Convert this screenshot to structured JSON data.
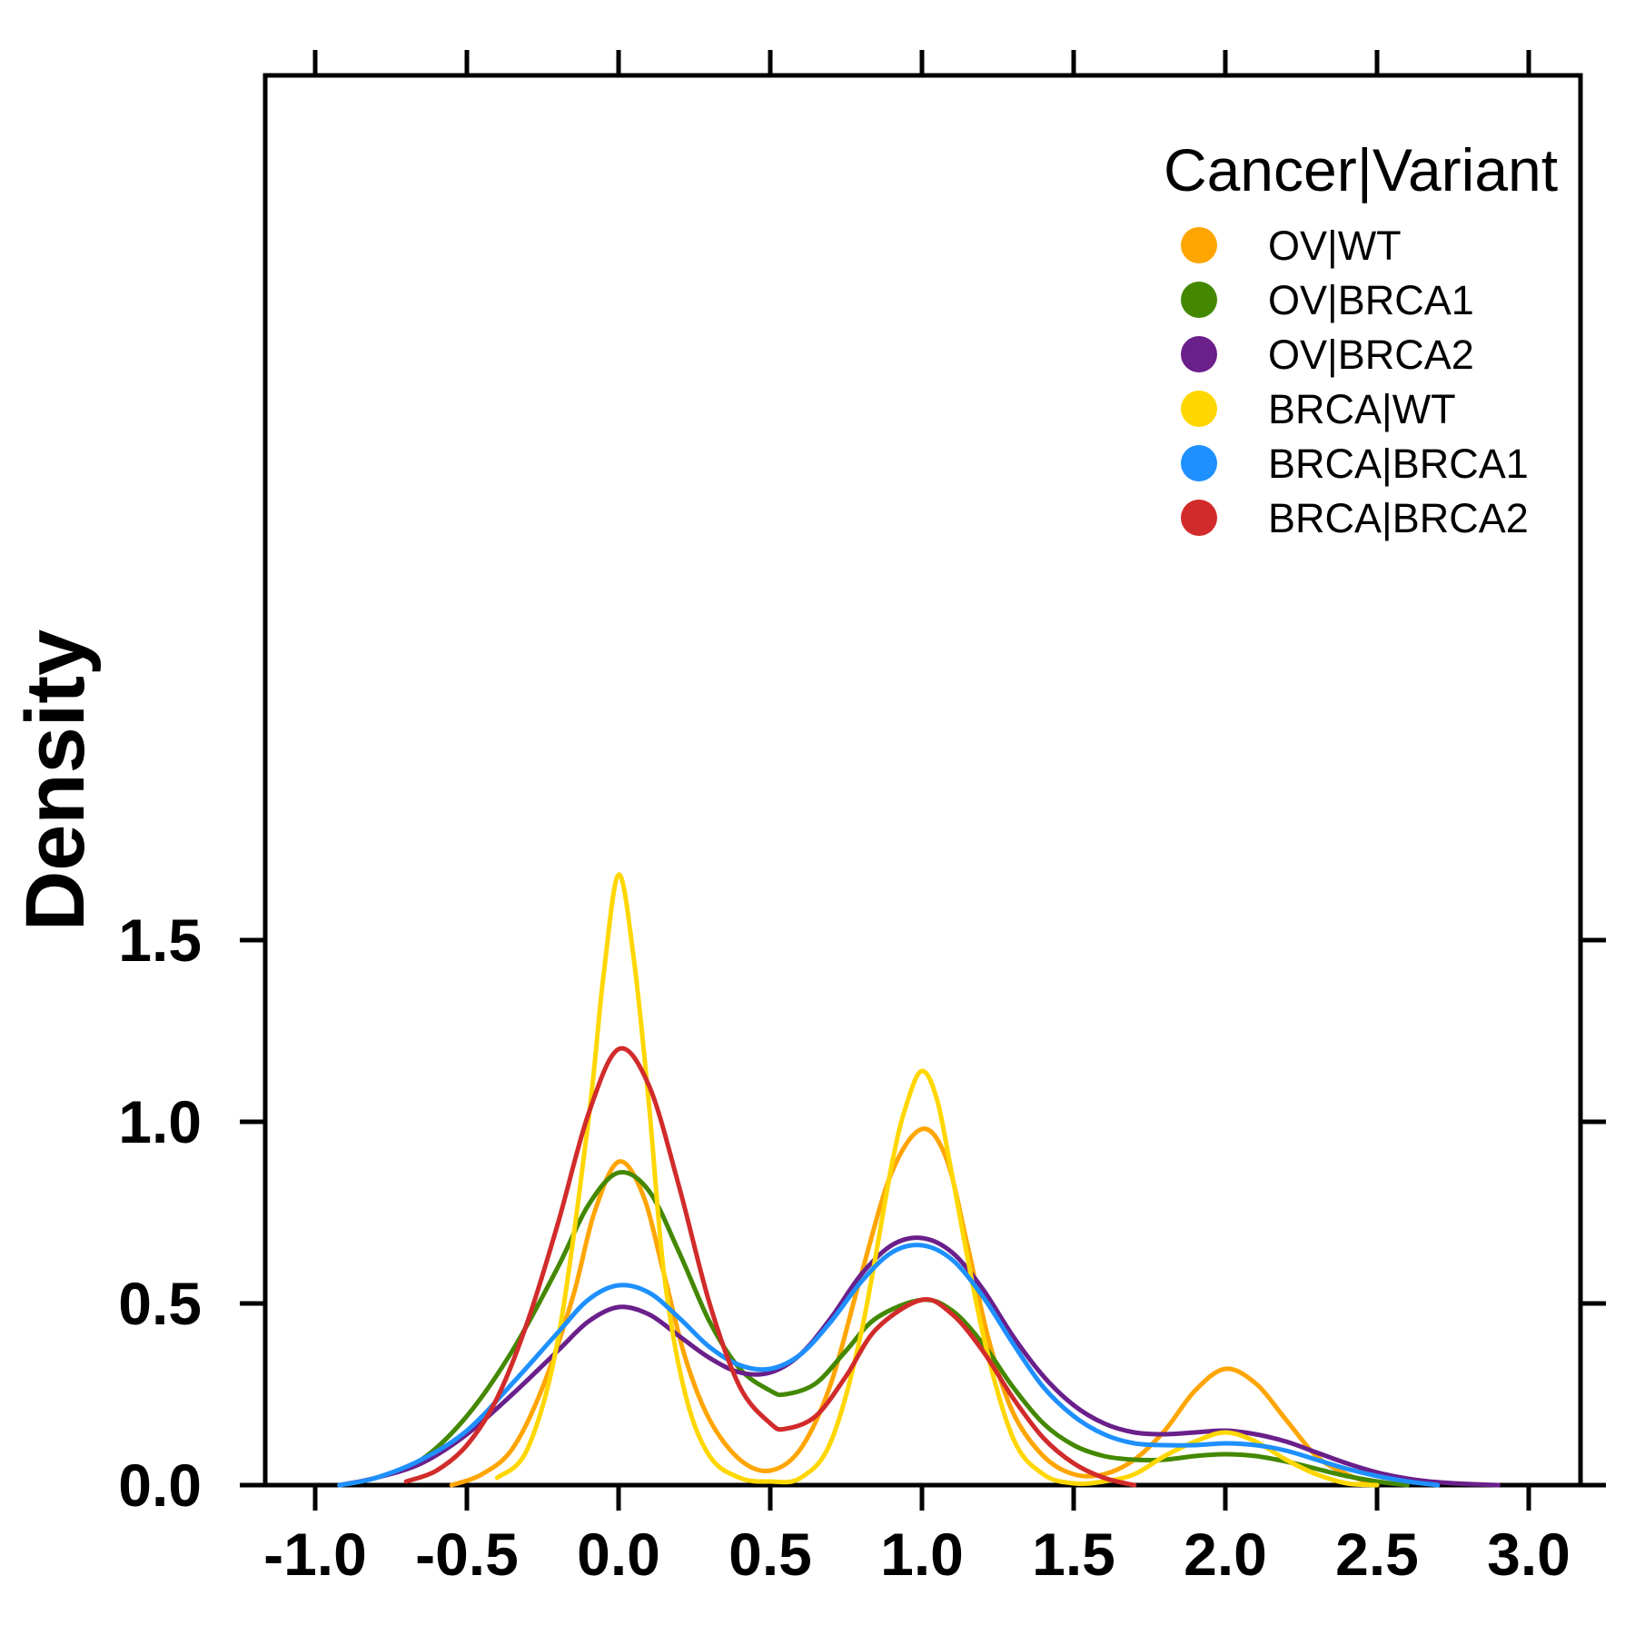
{
  "chart_data": {
    "type": "line",
    "title": "",
    "xlabel": "",
    "ylabel": "Density",
    "xlim": [
      -1.0,
      3.0
    ],
    "ylim": [
      0.0,
      1.8
    ],
    "x_ticks": [
      "-1.0",
      "-0.5",
      "0.0",
      "0.5",
      "1.0",
      "1.5",
      "2.0",
      "2.5",
      "3.0"
    ],
    "y_ticks": [
      "0.0",
      "0.5",
      "1.0",
      "1.5"
    ],
    "grid": false,
    "legend": {
      "title": "Cancer|Variant",
      "placement": "top-right"
    },
    "series": [
      {
        "name": "OV|WT",
        "color": "#FFA500",
        "points": [
          [
            -0.55,
            0.0
          ],
          [
            -0.45,
            0.03
          ],
          [
            -0.35,
            0.1
          ],
          [
            -0.25,
            0.27
          ],
          [
            -0.15,
            0.52
          ],
          [
            -0.08,
            0.75
          ],
          [
            0.0,
            0.89
          ],
          [
            0.08,
            0.8
          ],
          [
            0.15,
            0.58
          ],
          [
            0.22,
            0.35
          ],
          [
            0.3,
            0.18
          ],
          [
            0.4,
            0.07
          ],
          [
            0.5,
            0.04
          ],
          [
            0.6,
            0.1
          ],
          [
            0.7,
            0.28
          ],
          [
            0.8,
            0.58
          ],
          [
            0.9,
            0.86
          ],
          [
            1.0,
            0.98
          ],
          [
            1.08,
            0.9
          ],
          [
            1.15,
            0.66
          ],
          [
            1.22,
            0.4
          ],
          [
            1.3,
            0.2
          ],
          [
            1.4,
            0.08
          ],
          [
            1.5,
            0.03
          ],
          [
            1.6,
            0.03
          ],
          [
            1.7,
            0.07
          ],
          [
            1.8,
            0.15
          ],
          [
            1.9,
            0.26
          ],
          [
            2.0,
            0.32
          ],
          [
            2.1,
            0.28
          ],
          [
            2.2,
            0.18
          ],
          [
            2.3,
            0.08
          ],
          [
            2.4,
            0.03
          ],
          [
            2.5,
            0.0
          ]
        ]
      },
      {
        "name": "OV|BRCA1",
        "color": "#448800",
        "points": [
          [
            -0.92,
            0.0
          ],
          [
            -0.8,
            0.02
          ],
          [
            -0.65,
            0.07
          ],
          [
            -0.5,
            0.19
          ],
          [
            -0.35,
            0.37
          ],
          [
            -0.2,
            0.6
          ],
          [
            -0.1,
            0.77
          ],
          [
            0.0,
            0.86
          ],
          [
            0.1,
            0.81
          ],
          [
            0.2,
            0.64
          ],
          [
            0.3,
            0.45
          ],
          [
            0.4,
            0.32
          ],
          [
            0.5,
            0.26
          ],
          [
            0.55,
            0.25
          ],
          [
            0.65,
            0.28
          ],
          [
            0.75,
            0.37
          ],
          [
            0.85,
            0.46
          ],
          [
            1.0,
            0.51
          ],
          [
            1.1,
            0.48
          ],
          [
            1.2,
            0.39
          ],
          [
            1.3,
            0.27
          ],
          [
            1.4,
            0.17
          ],
          [
            1.5,
            0.11
          ],
          [
            1.6,
            0.08
          ],
          [
            1.7,
            0.07
          ],
          [
            1.8,
            0.07
          ],
          [
            1.9,
            0.08
          ],
          [
            2.0,
            0.085
          ],
          [
            2.1,
            0.08
          ],
          [
            2.2,
            0.065
          ],
          [
            2.3,
            0.045
          ],
          [
            2.4,
            0.025
          ],
          [
            2.5,
            0.01
          ],
          [
            2.6,
            0.0
          ]
        ]
      },
      {
        "name": "OV|BRCA2",
        "color": "#6A1F8A",
        "points": [
          [
            -0.92,
            0.0
          ],
          [
            -0.8,
            0.02
          ],
          [
            -0.65,
            0.06
          ],
          [
            -0.5,
            0.14
          ],
          [
            -0.35,
            0.25
          ],
          [
            -0.2,
            0.37
          ],
          [
            -0.1,
            0.45
          ],
          [
            0.0,
            0.49
          ],
          [
            0.1,
            0.47
          ],
          [
            0.2,
            0.41
          ],
          [
            0.3,
            0.35
          ],
          [
            0.4,
            0.31
          ],
          [
            0.5,
            0.31
          ],
          [
            0.6,
            0.36
          ],
          [
            0.7,
            0.46
          ],
          [
            0.8,
            0.58
          ],
          [
            0.9,
            0.66
          ],
          [
            1.0,
            0.68
          ],
          [
            1.1,
            0.64
          ],
          [
            1.2,
            0.54
          ],
          [
            1.3,
            0.41
          ],
          [
            1.4,
            0.3
          ],
          [
            1.5,
            0.22
          ],
          [
            1.6,
            0.17
          ],
          [
            1.7,
            0.145
          ],
          [
            1.8,
            0.14
          ],
          [
            1.9,
            0.145
          ],
          [
            2.0,
            0.15
          ],
          [
            2.1,
            0.14
          ],
          [
            2.2,
            0.12
          ],
          [
            2.3,
            0.09
          ],
          [
            2.4,
            0.06
          ],
          [
            2.5,
            0.035
          ],
          [
            2.6,
            0.018
          ],
          [
            2.7,
            0.008
          ],
          [
            2.8,
            0.003
          ],
          [
            2.9,
            0.0
          ]
        ]
      },
      {
        "name": "BRCA|WT",
        "color": "#FFD700",
        "points": [
          [
            -0.4,
            0.02
          ],
          [
            -0.3,
            0.1
          ],
          [
            -0.2,
            0.4
          ],
          [
            -0.1,
            1.0
          ],
          [
            -0.05,
            1.4
          ],
          [
            0.0,
            1.68
          ],
          [
            0.05,
            1.45
          ],
          [
            0.1,
            1.05
          ],
          [
            0.15,
            0.58
          ],
          [
            0.22,
            0.25
          ],
          [
            0.3,
            0.08
          ],
          [
            0.4,
            0.02
          ],
          [
            0.5,
            0.01
          ],
          [
            0.6,
            0.02
          ],
          [
            0.7,
            0.12
          ],
          [
            0.8,
            0.42
          ],
          [
            0.9,
            0.88
          ],
          [
            0.95,
            1.05
          ],
          [
            1.0,
            1.14
          ],
          [
            1.05,
            1.06
          ],
          [
            1.1,
            0.85
          ],
          [
            1.2,
            0.42
          ],
          [
            1.3,
            0.13
          ],
          [
            1.4,
            0.03
          ],
          [
            1.5,
            0.005
          ],
          [
            1.6,
            0.01
          ],
          [
            1.7,
            0.03
          ],
          [
            1.8,
            0.08
          ],
          [
            1.9,
            0.12
          ],
          [
            2.0,
            0.145
          ],
          [
            2.1,
            0.12
          ],
          [
            2.2,
            0.07
          ],
          [
            2.3,
            0.03
          ],
          [
            2.4,
            0.005
          ],
          [
            2.5,
            0.0
          ]
        ]
      },
      {
        "name": "BRCA|BRCA1",
        "color": "#1E90FF",
        "points": [
          [
            -0.92,
            0.0
          ],
          [
            -0.8,
            0.02
          ],
          [
            -0.65,
            0.07
          ],
          [
            -0.5,
            0.15
          ],
          [
            -0.35,
            0.28
          ],
          [
            -0.2,
            0.42
          ],
          [
            -0.1,
            0.51
          ],
          [
            0.0,
            0.55
          ],
          [
            0.1,
            0.53
          ],
          [
            0.2,
            0.46
          ],
          [
            0.3,
            0.38
          ],
          [
            0.4,
            0.33
          ],
          [
            0.5,
            0.32
          ],
          [
            0.6,
            0.36
          ],
          [
            0.7,
            0.45
          ],
          [
            0.8,
            0.56
          ],
          [
            0.9,
            0.64
          ],
          [
            1.0,
            0.66
          ],
          [
            1.1,
            0.62
          ],
          [
            1.2,
            0.52
          ],
          [
            1.3,
            0.39
          ],
          [
            1.4,
            0.27
          ],
          [
            1.5,
            0.19
          ],
          [
            1.6,
            0.14
          ],
          [
            1.7,
            0.115
          ],
          [
            1.8,
            0.11
          ],
          [
            1.9,
            0.11
          ],
          [
            2.0,
            0.115
          ],
          [
            2.1,
            0.11
          ],
          [
            2.2,
            0.095
          ],
          [
            2.3,
            0.07
          ],
          [
            2.4,
            0.045
          ],
          [
            2.5,
            0.025
          ],
          [
            2.6,
            0.01
          ],
          [
            2.7,
            0.0
          ]
        ]
      },
      {
        "name": "BRCA|BRCA2",
        "color": "#D22B2B",
        "points": [
          [
            -0.7,
            0.01
          ],
          [
            -0.6,
            0.04
          ],
          [
            -0.5,
            0.11
          ],
          [
            -0.4,
            0.24
          ],
          [
            -0.3,
            0.45
          ],
          [
            -0.2,
            0.72
          ],
          [
            -0.1,
            1.02
          ],
          [
            0.0,
            1.2
          ],
          [
            0.1,
            1.1
          ],
          [
            0.2,
            0.82
          ],
          [
            0.3,
            0.5
          ],
          [
            0.4,
            0.27
          ],
          [
            0.5,
            0.17
          ],
          [
            0.55,
            0.155
          ],
          [
            0.65,
            0.19
          ],
          [
            0.75,
            0.3
          ],
          [
            0.85,
            0.43
          ],
          [
            1.0,
            0.51
          ],
          [
            1.1,
            0.47
          ],
          [
            1.2,
            0.37
          ],
          [
            1.3,
            0.24
          ],
          [
            1.4,
            0.13
          ],
          [
            1.5,
            0.06
          ],
          [
            1.6,
            0.02
          ],
          [
            1.7,
            0.0
          ]
        ]
      }
    ]
  }
}
